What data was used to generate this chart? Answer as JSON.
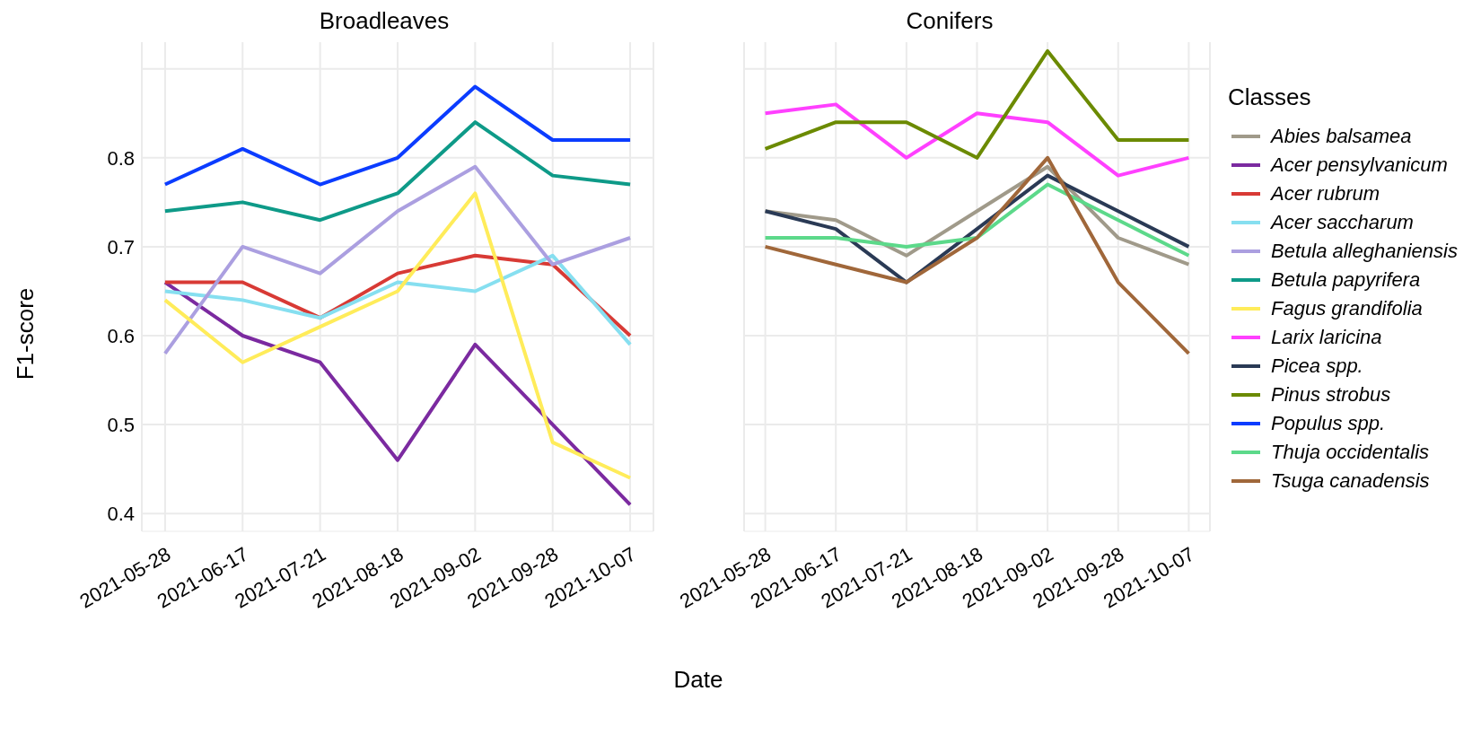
{
  "chart_data": [
    {
      "type": "line",
      "title": "Broadleaves",
      "xlabel": "Date",
      "ylabel": "F1-score",
      "categories": [
        "2021-05-28",
        "2021-06-17",
        "2021-07-21",
        "2021-08-18",
        "2021-09-02",
        "2021-09-28",
        "2021-10-07"
      ],
      "ylim": [
        0.38,
        0.93
      ],
      "yticks": [
        0.4,
        0.5,
        0.6,
        0.7,
        0.8,
        {
          "value": 0.9,
          "label": null
        }
      ],
      "grid": true,
      "legend": "right",
      "series": [
        {
          "name": "Acer pensylvanicum",
          "color": "#7b2aa0",
          "values": [
            0.66,
            0.6,
            0.57,
            0.46,
            0.59,
            0.5,
            0.41
          ]
        },
        {
          "name": "Acer rubrum",
          "color": "#d83a35",
          "values": [
            0.66,
            0.66,
            0.62,
            0.67,
            0.69,
            0.68,
            0.6
          ]
        },
        {
          "name": "Acer saccharum",
          "color": "#86dff0",
          "values": [
            0.65,
            0.64,
            0.62,
            0.66,
            0.65,
            0.69,
            0.59
          ]
        },
        {
          "name": "Betula alleghaniensis",
          "color": "#ab9fe0",
          "values": [
            0.58,
            0.7,
            0.67,
            0.74,
            0.79,
            0.68,
            0.71
          ]
        },
        {
          "name": "Betula papyrifera",
          "color": "#0e9a88",
          "values": [
            0.74,
            0.75,
            0.73,
            0.76,
            0.84,
            0.78,
            0.77
          ]
        },
        {
          "name": "Fagus grandifolia",
          "color": "#ffec5a",
          "values": [
            0.64,
            0.57,
            0.61,
            0.65,
            0.76,
            0.48,
            0.44
          ]
        },
        {
          "name": "Populus spp.",
          "color": "#0b3cff",
          "values": [
            0.77,
            0.81,
            0.77,
            0.8,
            0.88,
            0.82,
            0.82
          ]
        }
      ]
    },
    {
      "type": "line",
      "title": "Conifers",
      "legend_title": "Classes",
      "categories": [
        "2021-05-28",
        "2021-06-17",
        "2021-07-21",
        "2021-08-18",
        "2021-09-02",
        "2021-09-28",
        "2021-10-07"
      ],
      "ylim": [
        0.38,
        0.93
      ],
      "yticks": [
        0.4,
        0.5,
        0.6,
        0.7,
        0.8,
        {
          "value": 0.9,
          "label": null
        }
      ],
      "grid": true,
      "legend": "right",
      "tick_labels": "x",
      "series": [
        {
          "name": "Abies balsamea",
          "color": "#a09a8a",
          "values": [
            0.74,
            0.73,
            0.69,
            0.74,
            0.79,
            0.71,
            0.68
          ]
        },
        {
          "name": "Larix laricina",
          "color": "#ff40ff",
          "values": [
            0.85,
            0.86,
            0.8,
            0.85,
            0.84,
            0.78,
            0.8
          ]
        },
        {
          "name": "Picea spp.",
          "color": "#2a3a55",
          "values": [
            0.74,
            0.72,
            0.66,
            0.72,
            0.78,
            0.74,
            0.7
          ]
        },
        {
          "name": "Pinus strobus",
          "color": "#6b8a00",
          "values": [
            0.81,
            0.84,
            0.84,
            0.8,
            0.92,
            0.82,
            0.82
          ]
        },
        {
          "name": "Thuja occidentalis",
          "color": "#5cd98a",
          "values": [
            0.71,
            0.71,
            0.7,
            0.71,
            0.77,
            0.73,
            0.69
          ]
        },
        {
          "name": "Tsuga canadensis",
          "color": "#a0673a",
          "values": [
            0.7,
            0.68,
            0.66,
            0.71,
            0.8,
            0.66,
            0.58
          ]
        }
      ]
    }
  ]
}
